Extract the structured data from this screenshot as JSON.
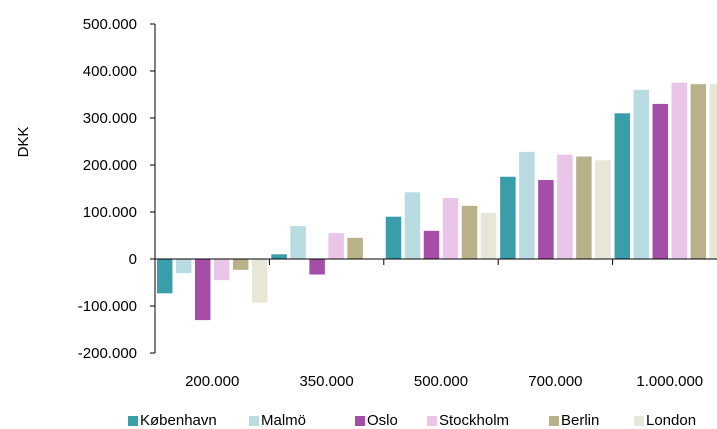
{
  "chart_data": {
    "type": "bar",
    "title": "",
    "xlabel": "",
    "ylabel": "DKK",
    "ylim": [
      -200000,
      500000
    ],
    "yticks": [
      -200000,
      -100000,
      0,
      100000,
      200000,
      300000,
      400000,
      500000
    ],
    "ytick_labels": [
      "-200.000",
      "-100.000",
      "0",
      "100.000",
      "200.000",
      "300.000",
      "400.000",
      "500.000"
    ],
    "categories": [
      "200.000",
      "350.000",
      "500.000",
      "700.000",
      "1.000.000"
    ],
    "series": [
      {
        "name": "København",
        "color": "#3a9daa",
        "values": [
          -73000,
          10000,
          90000,
          175000,
          310000
        ]
      },
      {
        "name": "Malmö",
        "color": "#b9dce2",
        "values": [
          -30000,
          70000,
          142000,
          228000,
          360000
        ]
      },
      {
        "name": "Oslo",
        "color": "#a44ea8",
        "values": [
          -130000,
          -33000,
          60000,
          168000,
          330000
        ]
      },
      {
        "name": "Stockholm",
        "color": "#e9c6e8",
        "values": [
          -45000,
          55000,
          130000,
          222000,
          375000
        ]
      },
      {
        "name": "Berlin",
        "color": "#b8b189",
        "values": [
          -23000,
          45000,
          113000,
          218000,
          372000
        ]
      },
      {
        "name": "London",
        "color": "#e8e6d7",
        "values": [
          -93000,
          0,
          98000,
          210000,
          372000
        ]
      }
    ],
    "grid": false,
    "legend_position": "bottom"
  }
}
